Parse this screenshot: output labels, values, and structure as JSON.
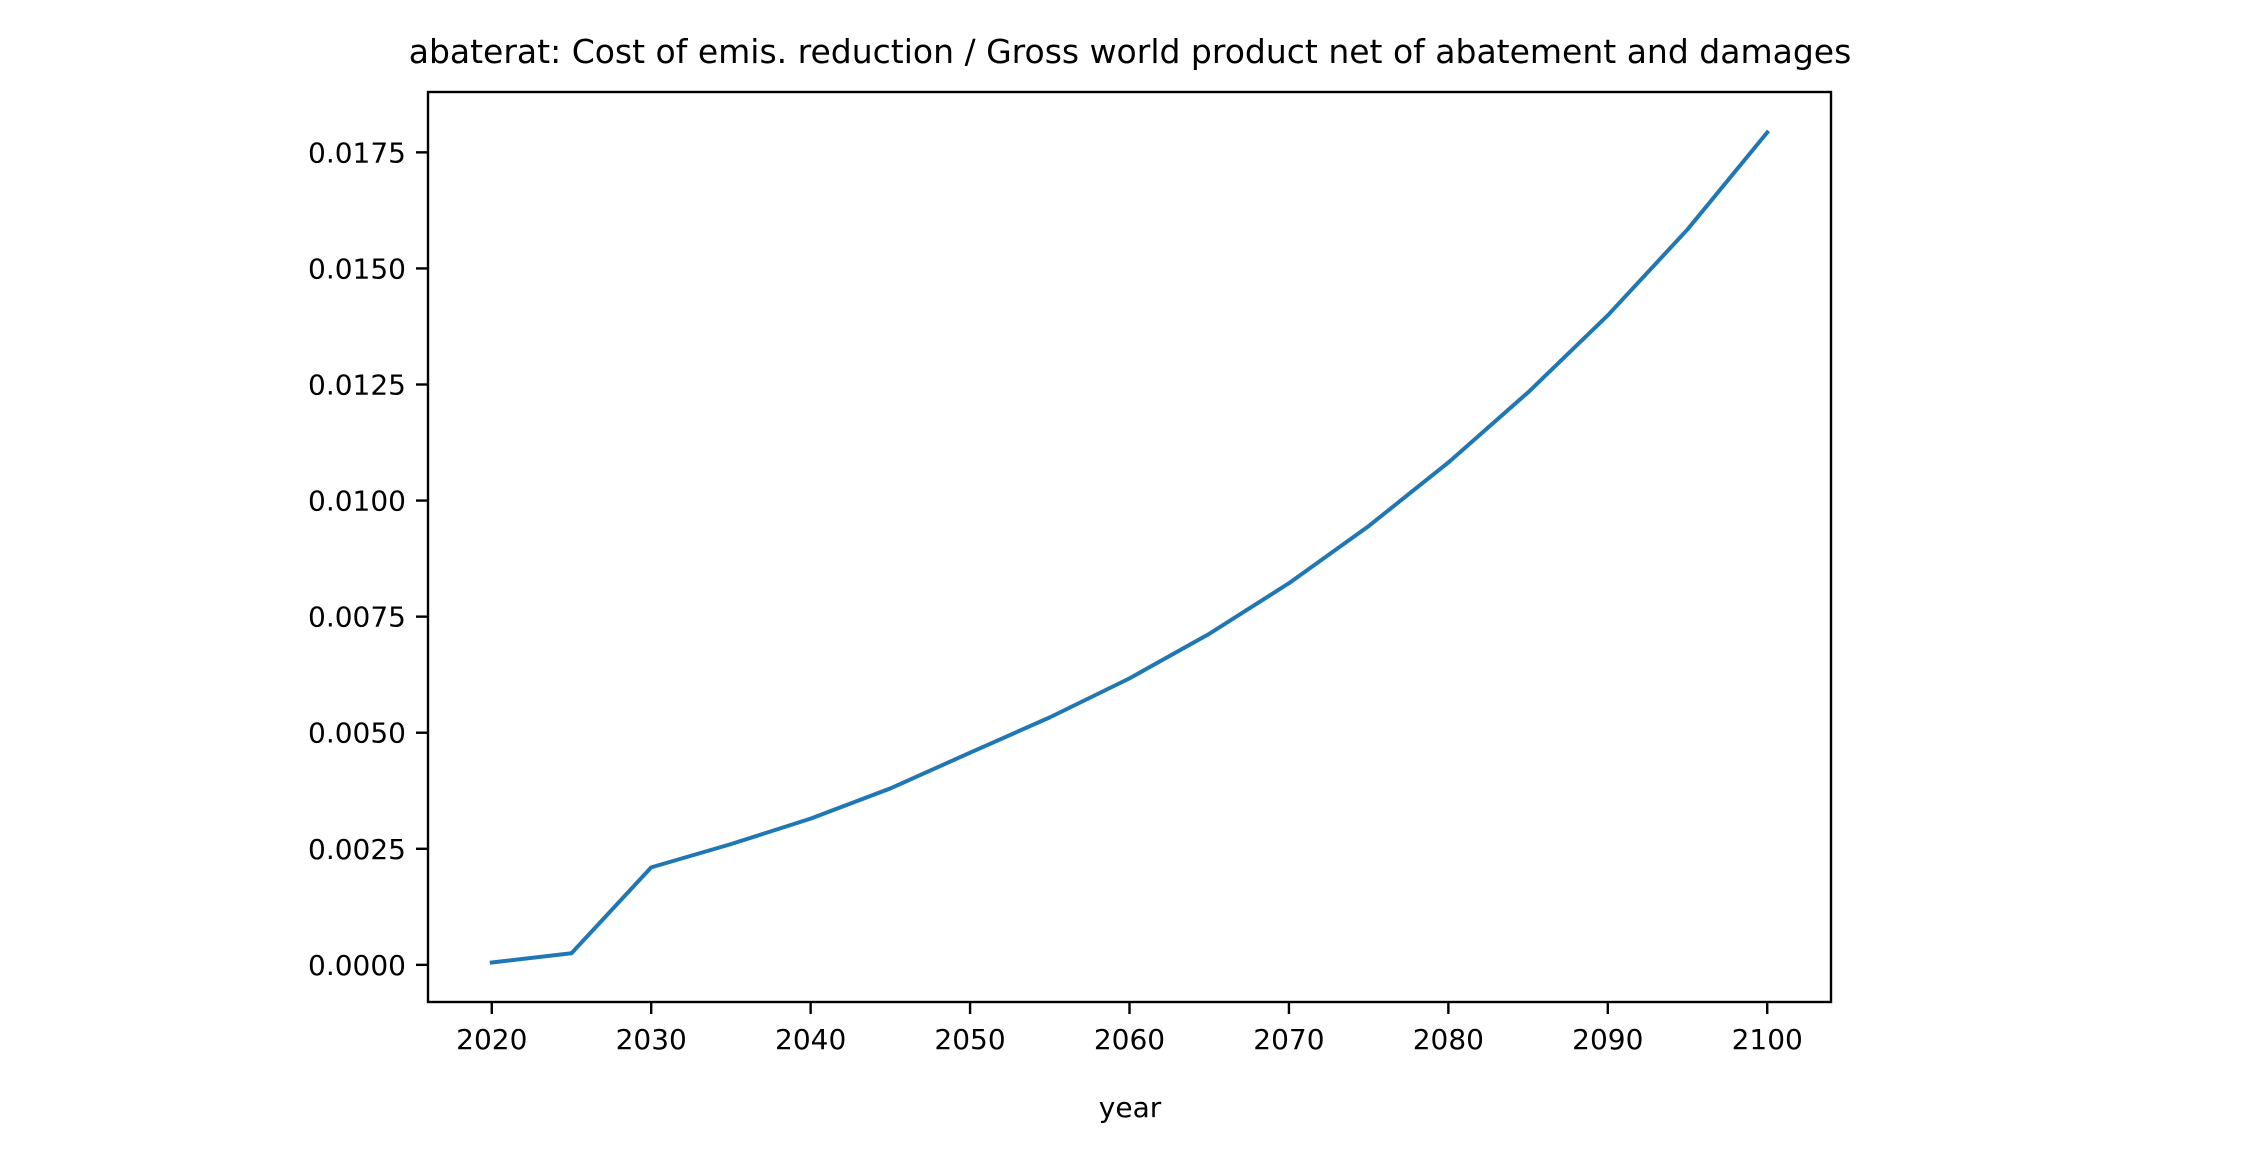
{
  "chart_data": {
    "type": "line",
    "title": "abaterat: Cost of emis. reduction / Gross world product net of abatement and damages",
    "xlabel": "year",
    "ylabel": "",
    "x": [
      2020,
      2025,
      2030,
      2035,
      2040,
      2045,
      2050,
      2055,
      2060,
      2065,
      2070,
      2075,
      2080,
      2085,
      2090,
      2095,
      2100
    ],
    "series": [
      {
        "values": [
          5e-05,
          0.00025,
          0.0021,
          0.0026,
          0.00315,
          0.0038,
          0.00457,
          0.00533,
          0.00617,
          0.00713,
          0.00822,
          0.00945,
          0.01082,
          0.01233,
          0.01399,
          0.01584,
          0.01793
        ],
        "color": "#1f77b4"
      }
    ],
    "xlim": [
      2016,
      2104
    ],
    "ylim": [
      -0.0008,
      0.0188
    ],
    "xticks": [
      2020,
      2030,
      2040,
      2050,
      2060,
      2070,
      2080,
      2090,
      2100
    ],
    "xtick_labels": [
      "2020",
      "2030",
      "2040",
      "2050",
      "2060",
      "2070",
      "2080",
      "2090",
      "2100"
    ],
    "yticks": [
      0,
      0.0025,
      0.005,
      0.0075,
      0.01,
      0.0125,
      0.015,
      0.0175
    ],
    "ytick_labels": [
      "0.0000",
      "0.0025",
      "0.0050",
      "0.0075",
      "0.0100",
      "0.0125",
      "0.0150",
      "0.0175"
    ],
    "grid": false,
    "legend": "none"
  }
}
